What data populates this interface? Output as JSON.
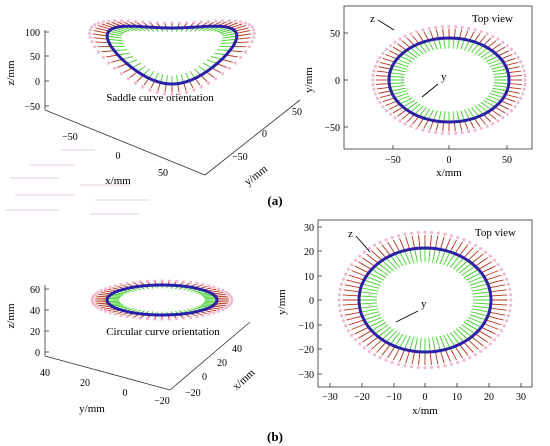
{
  "panel_a": {
    "label": "(a)",
    "view3d": {
      "annotation": "Saddle curve orientation",
      "zlabel": "z/mm",
      "xlabel": "x/mm",
      "ylabel": "y/mm",
      "z_ticks": [
        "100",
        "50",
        "0",
        "−50"
      ],
      "x_ticks": [
        "−50",
        "0",
        "50"
      ],
      "y_ticks": [
        "50",
        "0",
        "−50"
      ]
    },
    "top": {
      "title": "Top view",
      "xlabel": "x/mm",
      "ylabel": "y/mm",
      "x_ticks": [
        "−50",
        "0",
        "50"
      ],
      "y_ticks": [
        "50",
        "0",
        "−50"
      ],
      "label_z": "z",
      "label_y": "y"
    }
  },
  "panel_b": {
    "label": "(b)",
    "view3d": {
      "annotation": "Circular curve orientation",
      "zlabel": "z/mm",
      "xlabel": "x/mm",
      "ylabel": "y/mm",
      "z_ticks": [
        "60",
        "40",
        "20",
        "0"
      ],
      "x_ticks": [
        "40",
        "20",
        "0",
        "−20"
      ],
      "y_ticks": [
        "40",
        "20",
        "0",
        "−20"
      ]
    },
    "top": {
      "title": "Top view",
      "xlabel": "x/mm",
      "ylabel": "y/mm",
      "x_ticks": [
        "−30",
        "−20",
        "−10",
        "0",
        "10",
        "20",
        "30"
      ],
      "y_ticks": [
        "30",
        "20",
        "10",
        "0",
        "−10",
        "−20",
        "−30"
      ],
      "label_z": "z",
      "label_y": "y"
    }
  },
  "colors": {
    "curve": "#2a21a8",
    "z_arrow": "#b5321c",
    "y_arrow": "#3fd12a",
    "halo": "#f4b8d0"
  }
}
